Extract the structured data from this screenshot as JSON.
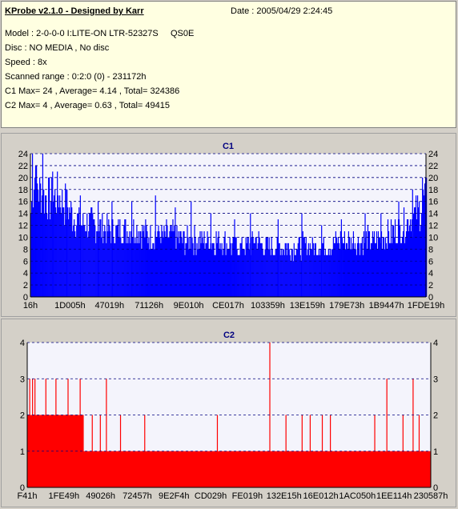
{
  "info": {
    "title": "KProbe v2.1.0 - Designed by Karr",
    "date": "Date : 2005/04/29 2:24:45",
    "model": "Model : 2-0-0-0 I:LITE-ON LTR-52327S",
    "model_suffix": "QS0E",
    "disc": "Disc : NO MEDIA , No disc",
    "speed": "Speed : 8x",
    "range": "Scanned range : 0:2:0 (0) - 231172h",
    "c1": "C1 Max= 24 , Average= 4.14 , Total= 324386",
    "c2": "C2 Max= 4 , Average= 0.63 , Total= 49415"
  },
  "chart_data": [
    {
      "type": "area",
      "title": "C1",
      "color": "#0000ff",
      "ylim": [
        0,
        24
      ],
      "yticks": [
        0,
        2,
        4,
        6,
        8,
        10,
        12,
        14,
        16,
        18,
        20,
        22,
        24
      ],
      "xtick_labels": [
        "16h",
        "1D005h",
        "47019h",
        "71126h",
        "9E010h",
        "CE017h",
        "103359h",
        "13E159h",
        "179E73h",
        "1B9447h",
        "1FDE19h"
      ],
      "envelope": [
        [
          0,
          15
        ],
        [
          0.01,
          21
        ],
        [
          0.02,
          19
        ],
        [
          0.03,
          18
        ],
        [
          0.05,
          17
        ],
        [
          0.07,
          18
        ],
        [
          0.09,
          16
        ],
        [
          0.11,
          14
        ],
        [
          0.13,
          13
        ],
        [
          0.15,
          13
        ],
        [
          0.18,
          12
        ],
        [
          0.21,
          12
        ],
        [
          0.24,
          12
        ],
        [
          0.27,
          12
        ],
        [
          0.3,
          11
        ],
        [
          0.33,
          11
        ],
        [
          0.36,
          11
        ],
        [
          0.39,
          10
        ],
        [
          0.42,
          10
        ],
        [
          0.45,
          10
        ],
        [
          0.48,
          10
        ],
        [
          0.51,
          9
        ],
        [
          0.54,
          9
        ],
        [
          0.57,
          10
        ],
        [
          0.6,
          9
        ],
        [
          0.63,
          9
        ],
        [
          0.66,
          9
        ],
        [
          0.69,
          9
        ],
        [
          0.72,
          9
        ],
        [
          0.75,
          9
        ],
        [
          0.78,
          10
        ],
        [
          0.81,
          10
        ],
        [
          0.84,
          10
        ],
        [
          0.87,
          10
        ],
        [
          0.9,
          11
        ],
        [
          0.93,
          12
        ],
        [
          0.96,
          14
        ],
        [
          0.98,
          15
        ],
        [
          1,
          18
        ]
      ],
      "spikes": [
        [
          0.004,
          24
        ],
        [
          0.012,
          22
        ],
        [
          0.03,
          24
        ],
        [
          0.055,
          21
        ],
        [
          0.09,
          18
        ],
        [
          0.125,
          17
        ],
        [
          0.17,
          16
        ],
        [
          0.205,
          16
        ],
        [
          0.255,
          16
        ],
        [
          0.315,
          17
        ],
        [
          0.365,
          15
        ],
        [
          0.405,
          16
        ],
        [
          0.455,
          14
        ],
        [
          0.515,
          13
        ],
        [
          0.555,
          14
        ],
        [
          0.625,
          13
        ],
        [
          0.685,
          14
        ],
        [
          0.735,
          12
        ],
        [
          0.785,
          13
        ],
        [
          0.845,
          14
        ],
        [
          0.885,
          14
        ],
        [
          0.93,
          16
        ],
        [
          0.965,
          18
        ],
        [
          0.99,
          20
        ]
      ]
    },
    {
      "type": "bar",
      "title": "C2",
      "color": "#ff0000",
      "ylim": [
        0,
        4
      ],
      "yticks": [
        0,
        1,
        2,
        3,
        4
      ],
      "xtick_labels": [
        "F41h",
        "1FE49h",
        "49026h",
        "72457h",
        "9E2F4h",
        "CD029h",
        "FE019h",
        "132E15h",
        "16E012h",
        "1AC050h",
        "1EE114h",
        "230587h"
      ],
      "baseline": 1,
      "block": [
        0,
        0.14,
        2
      ],
      "spikes": [
        [
          0.005,
          3
        ],
        [
          0.012,
          3
        ],
        [
          0.018,
          3
        ],
        [
          0.045,
          3
        ],
        [
          0.07,
          3
        ],
        [
          0.1,
          3
        ],
        [
          0.13,
          3
        ],
        [
          0.195,
          3
        ],
        [
          0.6,
          4
        ],
        [
          0.89,
          3
        ],
        [
          0.955,
          3
        ],
        [
          0.16,
          2
        ],
        [
          0.18,
          2
        ],
        [
          0.23,
          2
        ],
        [
          0.29,
          2
        ],
        [
          0.47,
          2
        ],
        [
          0.64,
          2
        ],
        [
          0.68,
          2
        ],
        [
          0.7,
          2
        ],
        [
          0.73,
          2
        ],
        [
          0.75,
          2
        ],
        [
          0.86,
          2
        ],
        [
          0.93,
          2
        ],
        [
          0.97,
          2
        ]
      ]
    }
  ]
}
